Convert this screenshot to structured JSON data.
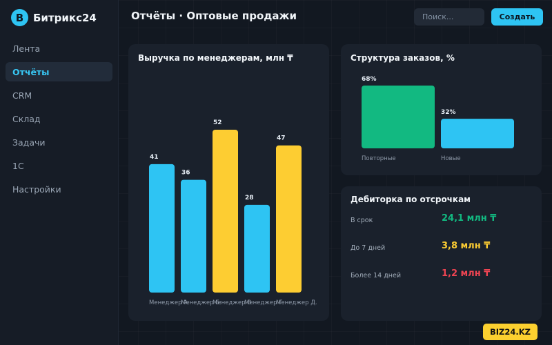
{
  "app": {
    "brand_initial": "B",
    "brand_name": "Битрикс24"
  },
  "sidebar": {
    "items": [
      {
        "label": "Лента",
        "active": false
      },
      {
        "label": "Отчёты",
        "active": true
      },
      {
        "label": "CRM",
        "active": false
      },
      {
        "label": "Склад",
        "active": false
      },
      {
        "label": "Задачи",
        "active": false
      },
      {
        "label": "1С",
        "active": false
      },
      {
        "label": "Настройки",
        "active": false
      }
    ]
  },
  "header": {
    "title": "Отчёты · Оптовые продажи",
    "search_placeholder": "Поиск...",
    "create_label": "Создать"
  },
  "colors": {
    "accent": "#2ec4f3",
    "highlight": "#fdcd32",
    "green": "#12b981",
    "red": "#ef4452"
  },
  "chart_data": [
    {
      "type": "bar",
      "title": "Выручка по менеджерам, млн ₸",
      "categories": [
        "Менеджер А.",
        "Менеджер Б.",
        "Менеджер В.",
        "Менеджер Г.",
        "Менеджер Д."
      ],
      "values": [
        41,
        36,
        52,
        28,
        47
      ],
      "colors": [
        "#2ec4f3",
        "#2ec4f3",
        "#fdcd32",
        "#2ec4f3",
        "#fdcd32"
      ],
      "ylim": [
        0,
        52
      ],
      "grid": false,
      "legend": "none"
    },
    {
      "type": "bar",
      "title": "Структура заказов, %",
      "categories": [
        "Повторные",
        "Новые"
      ],
      "values": [
        68,
        32
      ],
      "value_suffix": "%",
      "colors": [
        "#12b981",
        "#2ec4f3"
      ],
      "ylim": [
        0,
        68
      ],
      "grid": false,
      "legend": "none"
    }
  ],
  "receivables": {
    "title": "Дебиторка по отсрочкам",
    "rows": [
      {
        "label": "В срок",
        "value": "24,1 млн ₸",
        "color": "#12b981"
      },
      {
        "label": "До 7 дней",
        "value": "3,8 млн ₸",
        "color": "#fdcd32"
      },
      {
        "label": "Более 14 дней",
        "value": "1,2 млн ₸",
        "color": "#ef4452"
      }
    ]
  },
  "watermark": "BIZ24.KZ"
}
